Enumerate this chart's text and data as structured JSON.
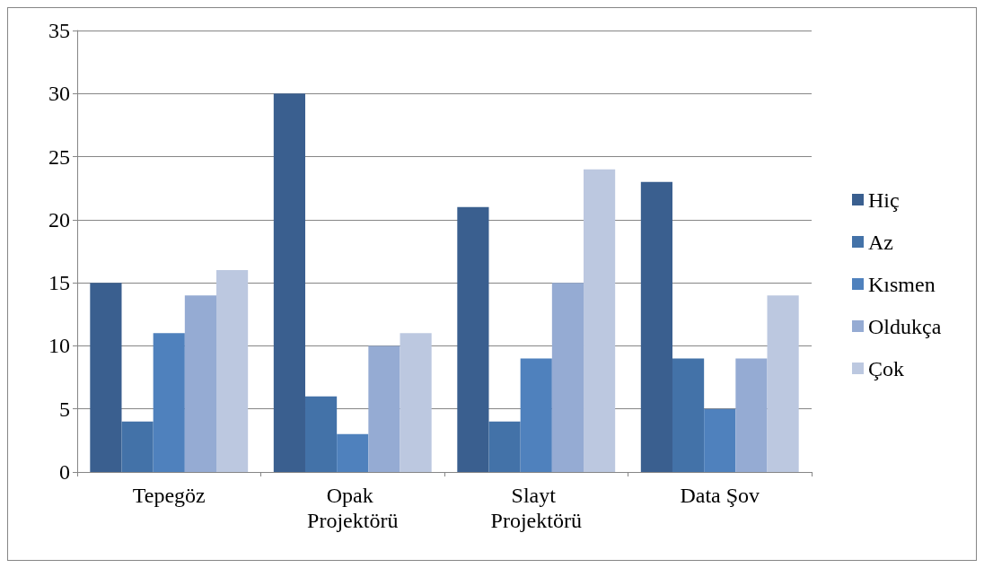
{
  "chart_data": {
    "type": "bar",
    "categories": [
      "Tepegöz",
      "Opak Projektörü",
      "Slayt Projektörü",
      "Data Şov"
    ],
    "series": [
      {
        "name": "Hiç",
        "color": "#3a5f8f",
        "values": [
          15,
          30,
          21,
          23
        ]
      },
      {
        "name": "Az",
        "color": "#4372a8",
        "values": [
          4,
          6,
          4,
          9
        ]
      },
      {
        "name": "Kısmen",
        "color": "#4f81bd",
        "values": [
          11,
          3,
          9,
          5
        ]
      },
      {
        "name": "Oldukça",
        "color": "#95abd3",
        "values": [
          14,
          10,
          15,
          9
        ]
      },
      {
        "name": "Çok",
        "color": "#bcc8e0",
        "values": [
          16,
          11,
          24,
          14
        ]
      }
    ],
    "ylim": [
      0,
      35
    ],
    "yticks": [
      0,
      5,
      10,
      15,
      20,
      25,
      30,
      35
    ],
    "grid": "y",
    "legend": "right"
  }
}
